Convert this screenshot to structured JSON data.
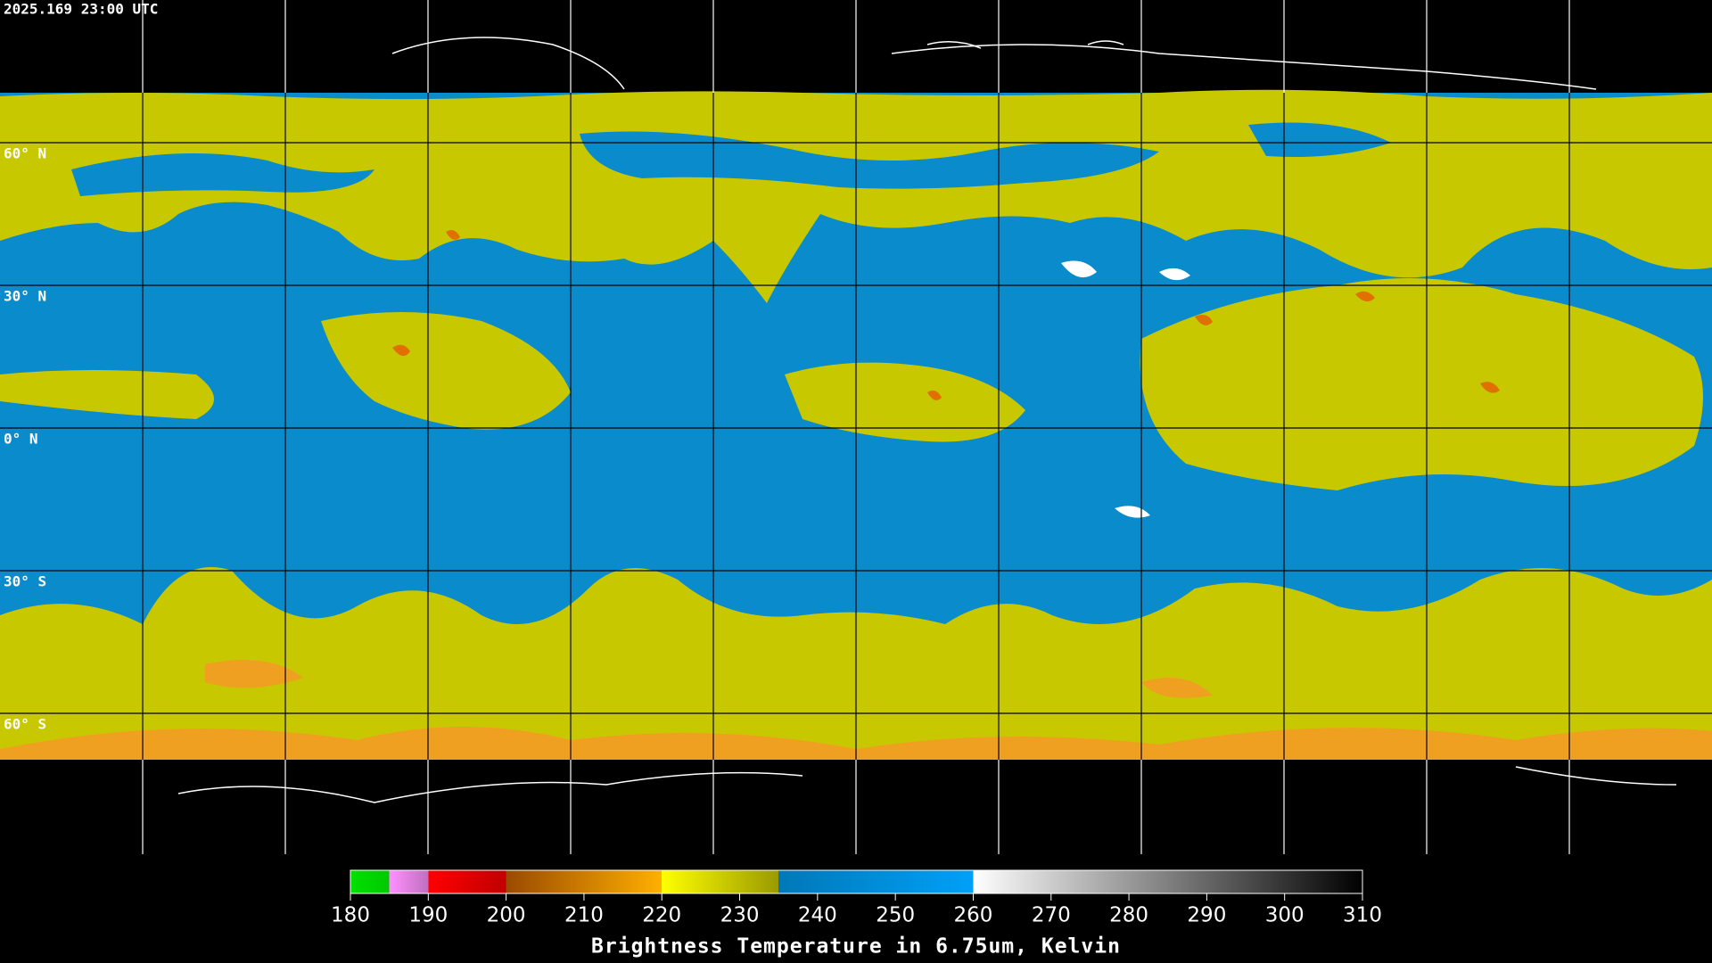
{
  "timestamp": "2025.169 23:00 UTC",
  "lat_labels": [
    "60° N",
    "30° N",
    "0° N",
    "30° S",
    "60° S"
  ],
  "colorbar": {
    "title": "Brightness Temperature in 6.75um, Kelvin",
    "range": [
      180,
      310
    ],
    "ticks": [
      180,
      190,
      200,
      210,
      220,
      230,
      240,
      250,
      260,
      270,
      280,
      290,
      300,
      310
    ],
    "stops": [
      {
        "value": 180,
        "color": "#00e000"
      },
      {
        "value": 185,
        "color": "#00c800"
      },
      {
        "value": 185,
        "color": "#ff90ff"
      },
      {
        "value": 190,
        "color": "#c070c0"
      },
      {
        "value": 190,
        "color": "#ff0000"
      },
      {
        "value": 200,
        "color": "#c00000"
      },
      {
        "value": 200,
        "color": "#9a4a00"
      },
      {
        "value": 220,
        "color": "#ffb000"
      },
      {
        "value": 220,
        "color": "#ffff00"
      },
      {
        "value": 235,
        "color": "#9a9a00"
      },
      {
        "value": 235,
        "color": "#0078b8"
      },
      {
        "value": 260,
        "color": "#00a0f8"
      },
      {
        "value": 260,
        "color": "#ffffff"
      },
      {
        "value": 310,
        "color": "#000000"
      }
    ]
  }
}
